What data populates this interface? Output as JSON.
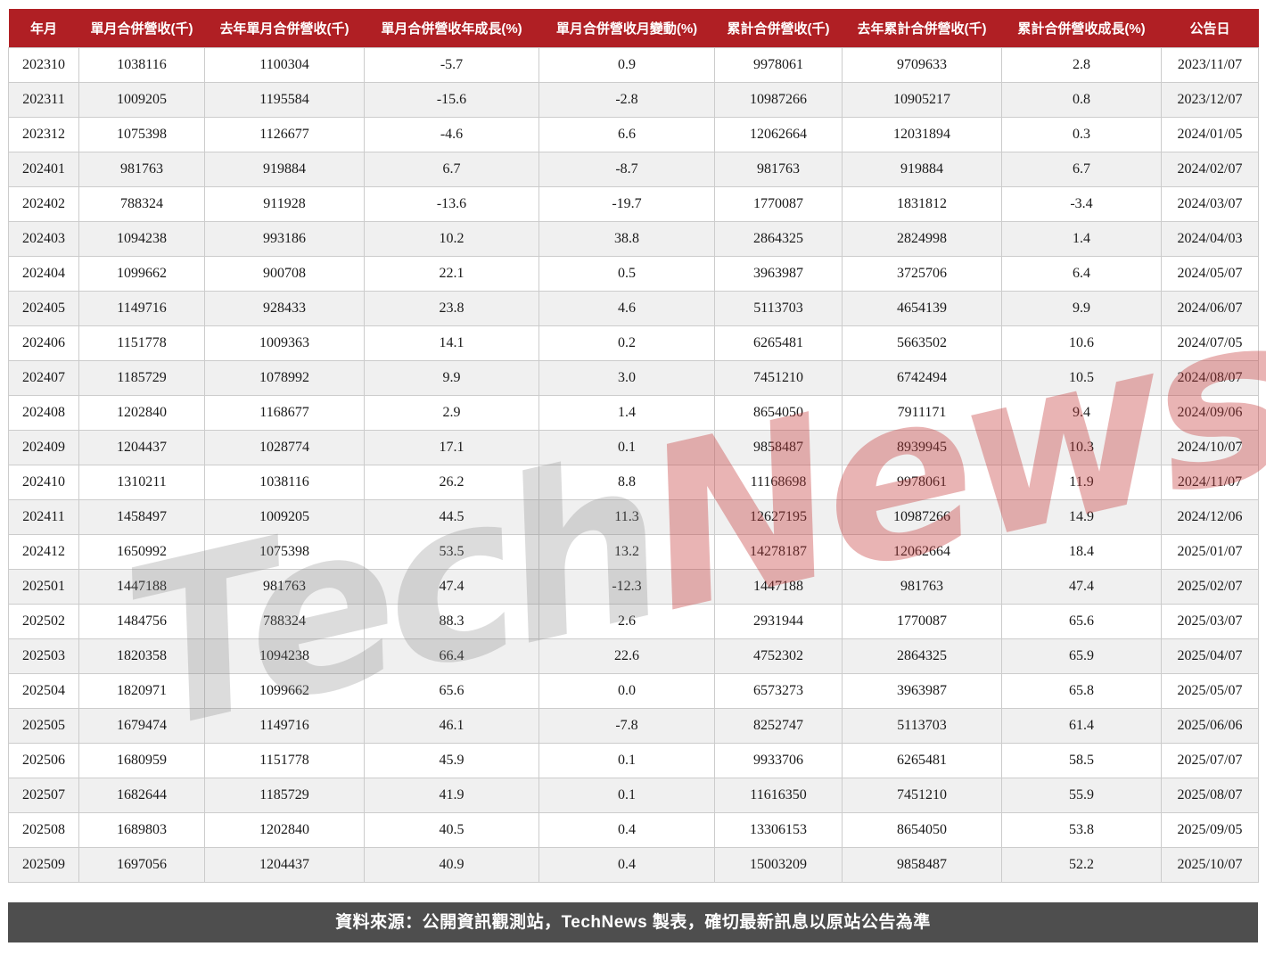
{
  "chart_data": {
    "type": "table",
    "title": "月營收統計表",
    "columns": [
      "年月",
      "單月合併營收(千)",
      "去年單月合併營收(千)",
      "單月合併營收年成長(%)",
      "單月合併營收月變動(%)",
      "累計合併營收(千)",
      "去年累計合併營收(千)",
      "累計合併營收成長(%)",
      "公告日"
    ],
    "rows": [
      [
        "202310",
        "1038116",
        "1100304",
        "-5.7",
        "0.9",
        "9978061",
        "9709633",
        "2.8",
        "2023/11/07"
      ],
      [
        "202311",
        "1009205",
        "1195584",
        "-15.6",
        "-2.8",
        "10987266",
        "10905217",
        "0.8",
        "2023/12/07"
      ],
      [
        "202312",
        "1075398",
        "1126677",
        "-4.6",
        "6.6",
        "12062664",
        "12031894",
        "0.3",
        "2024/01/05"
      ],
      [
        "202401",
        "981763",
        "919884",
        "6.7",
        "-8.7",
        "981763",
        "919884",
        "6.7",
        "2024/02/07"
      ],
      [
        "202402",
        "788324",
        "911928",
        "-13.6",
        "-19.7",
        "1770087",
        "1831812",
        "-3.4",
        "2024/03/07"
      ],
      [
        "202403",
        "1094238",
        "993186",
        "10.2",
        "38.8",
        "2864325",
        "2824998",
        "1.4",
        "2024/04/03"
      ],
      [
        "202404",
        "1099662",
        "900708",
        "22.1",
        "0.5",
        "3963987",
        "3725706",
        "6.4",
        "2024/05/07"
      ],
      [
        "202405",
        "1149716",
        "928433",
        "23.8",
        "4.6",
        "5113703",
        "4654139",
        "9.9",
        "2024/06/07"
      ],
      [
        "202406",
        "1151778",
        "1009363",
        "14.1",
        "0.2",
        "6265481",
        "5663502",
        "10.6",
        "2024/07/05"
      ],
      [
        "202407",
        "1185729",
        "1078992",
        "9.9",
        "3.0",
        "7451210",
        "6742494",
        "10.5",
        "2024/08/07"
      ],
      [
        "202408",
        "1202840",
        "1168677",
        "2.9",
        "1.4",
        "8654050",
        "7911171",
        "9.4",
        "2024/09/06"
      ],
      [
        "202409",
        "1204437",
        "1028774",
        "17.1",
        "0.1",
        "9858487",
        "8939945",
        "10.3",
        "2024/10/07"
      ],
      [
        "202410",
        "1310211",
        "1038116",
        "26.2",
        "8.8",
        "11168698",
        "9978061",
        "11.9",
        "2024/11/07"
      ],
      [
        "202411",
        "1458497",
        "1009205",
        "44.5",
        "11.3",
        "12627195",
        "10987266",
        "14.9",
        "2024/12/06"
      ],
      [
        "202412",
        "1650992",
        "1075398",
        "53.5",
        "13.2",
        "14278187",
        "12062664",
        "18.4",
        "2025/01/07"
      ],
      [
        "202501",
        "1447188",
        "981763",
        "47.4",
        "-12.3",
        "1447188",
        "981763",
        "47.4",
        "2025/02/07"
      ],
      [
        "202502",
        "1484756",
        "788324",
        "88.3",
        "2.6",
        "2931944",
        "1770087",
        "65.6",
        "2025/03/07"
      ],
      [
        "202503",
        "1820358",
        "1094238",
        "66.4",
        "22.6",
        "4752302",
        "2864325",
        "65.9",
        "2025/04/07"
      ],
      [
        "202504",
        "1820971",
        "1099662",
        "65.6",
        "0.0",
        "6573273",
        "3963987",
        "65.8",
        "2025/05/07"
      ],
      [
        "202505",
        "1679474",
        "1149716",
        "46.1",
        "-7.8",
        "8252747",
        "5113703",
        "61.4",
        "2025/06/06"
      ],
      [
        "202506",
        "1680959",
        "1151778",
        "45.9",
        "0.1",
        "9933706",
        "6265481",
        "58.5",
        "2025/07/07"
      ],
      [
        "202507",
        "1682644",
        "1185729",
        "41.9",
        "0.1",
        "11616350",
        "7451210",
        "55.9",
        "2025/08/07"
      ],
      [
        "202508",
        "1689803",
        "1202840",
        "40.5",
        "0.4",
        "13306153",
        "8654050",
        "53.8",
        "2025/09/05"
      ],
      [
        "202509",
        "1697056",
        "1204437",
        "40.9",
        "0.4",
        "15003209",
        "9858487",
        "52.2",
        "2025/10/07"
      ]
    ],
    "layout": {
      "grid": true,
      "alternating_rows": true,
      "header_position": "top"
    }
  },
  "watermark": {
    "tech": "Tech",
    "news": "News"
  },
  "footer": {
    "text": "資料來源：公開資訊觀測站，TechNews 製表，確切最新訊息以原站公告為準"
  },
  "colors": {
    "header_bg": "#b01f24",
    "header_text": "#ffffff",
    "row_alt_bg": "#f0f0f0",
    "cell_border": "#cccccc",
    "footer_bg": "#4e4e4e",
    "watermark_gray": "#828282",
    "watermark_red": "#c63a3a"
  }
}
